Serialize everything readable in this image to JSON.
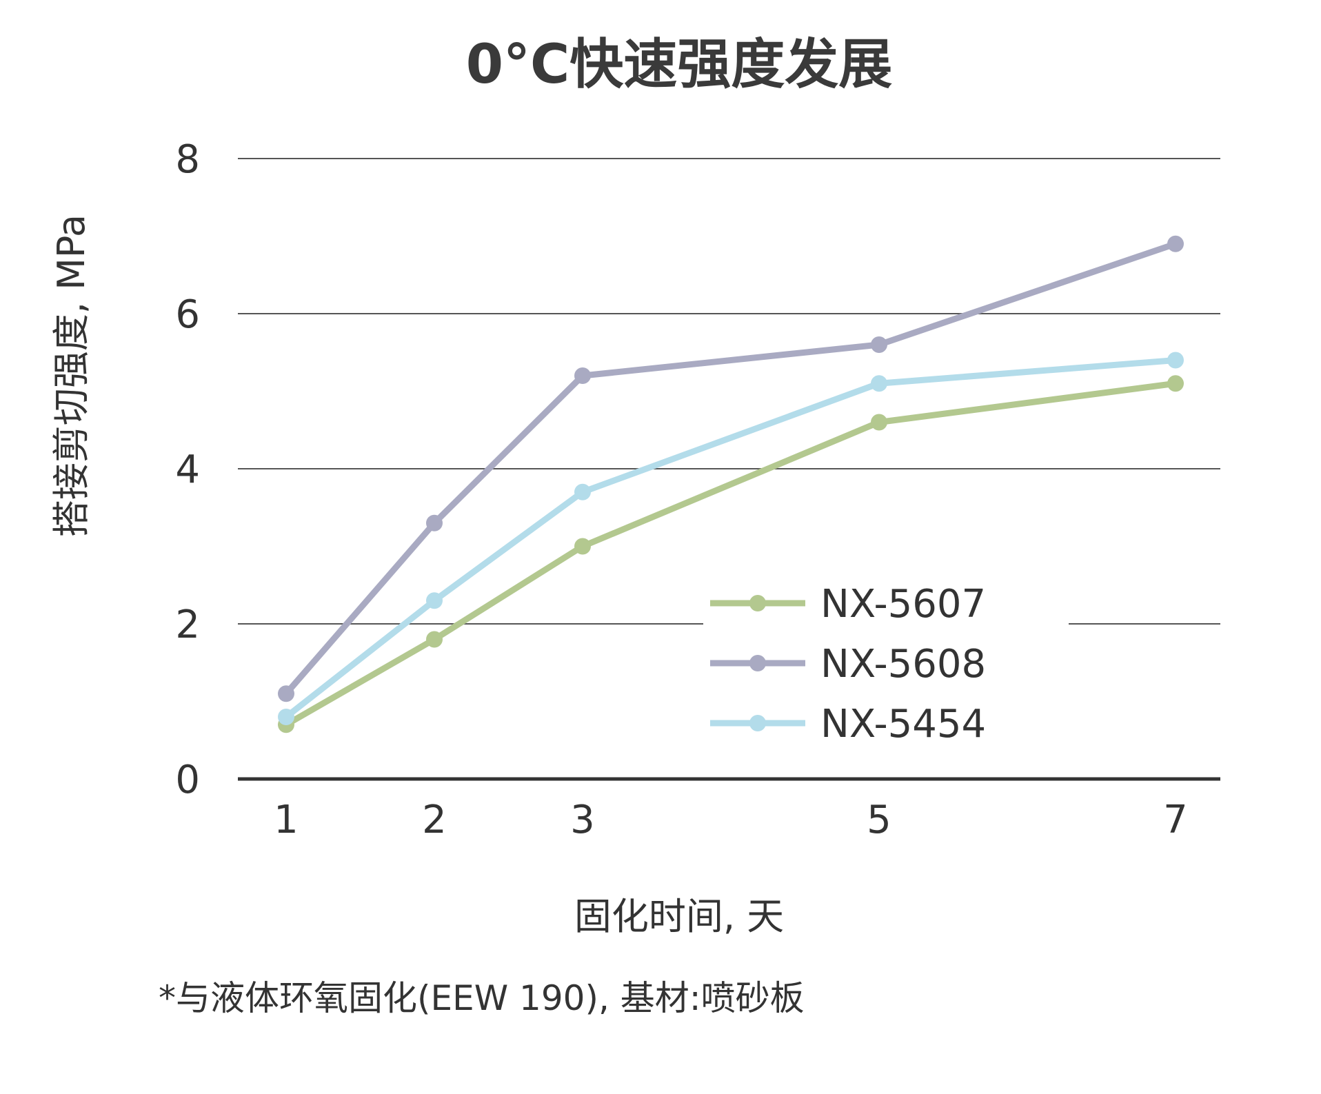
{
  "chart_data": {
    "type": "line",
    "title": "0°C快速强度发展",
    "xlabel": "固化时间, 天",
    "ylabel": "搭接剪切强度, MPa",
    "x": [
      1,
      2,
      3,
      5,
      7
    ],
    "x_tick_labels": [
      "1",
      "2",
      "3",
      "5",
      "7"
    ],
    "y_ticks": [
      0,
      2,
      4,
      6,
      8
    ],
    "y_tick_labels": [
      "0",
      "2",
      "4",
      "6",
      "8"
    ],
    "ylim": [
      0,
      8
    ],
    "grid": "horizontal",
    "legend_position": "bottom-right",
    "series": [
      {
        "name": "NX-5607",
        "color": "#b3c88f",
        "values": [
          0.7,
          1.8,
          3.0,
          4.6,
          5.1
        ]
      },
      {
        "name": "NX-5608",
        "color": "#a9aac2",
        "values": [
          1.1,
          3.3,
          5.2,
          5.6,
          6.9
        ]
      },
      {
        "name": "NX-5454",
        "color": "#b3dcea",
        "values": [
          0.8,
          2.3,
          3.7,
          5.1,
          5.4
        ]
      }
    ],
    "footnote": "*与液体环氧固化(EEW 190), 基材:喷砂板"
  }
}
